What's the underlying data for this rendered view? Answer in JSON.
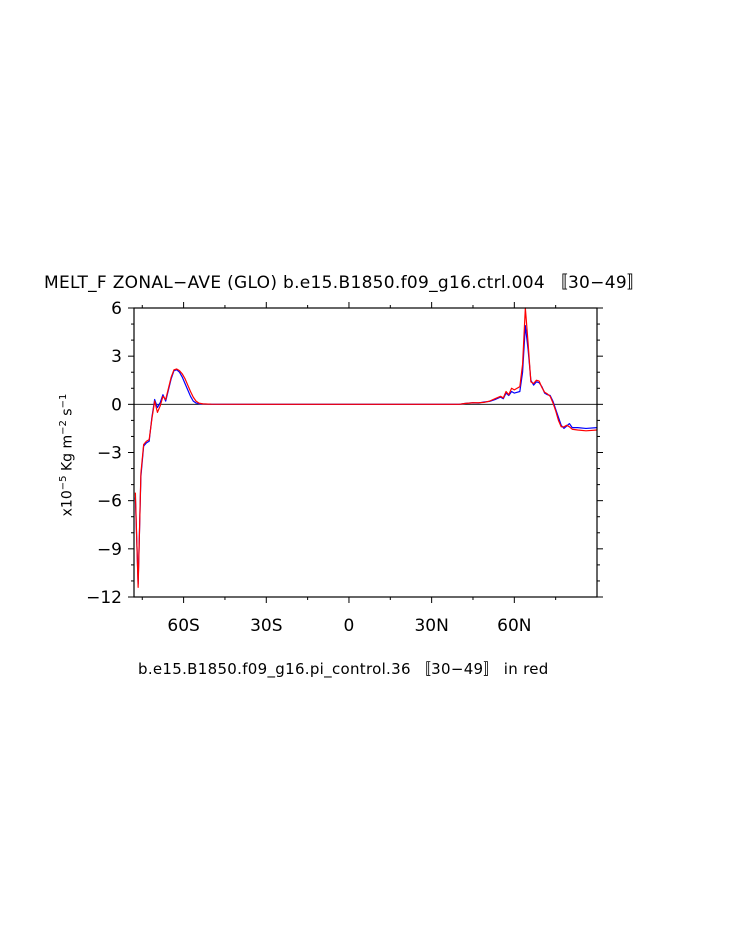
{
  "chart_data": {
    "type": "line",
    "title": "MELT_F ZONAL−AVE (GLO) b.e15.B1850.f09_g16.ctrl.004 〚30−49〛",
    "caption": "b.e15.B1850.f09_g16.pi_control.36 〚30−49〛 in red",
    "ylabel": {
      "prefix": "x10",
      "exp1": "−5",
      "unit1": " Kg m",
      "exp2": "−2",
      "unit2": " s",
      "exp3": "−1"
    },
    "xlim": [
      -78,
      90
    ],
    "ylim": [
      -12,
      6
    ],
    "x_ticks": [
      {
        "value": -60,
        "label": "60S"
      },
      {
        "value": -30,
        "label": "30S"
      },
      {
        "value": 0,
        "label": "0"
      },
      {
        "value": 30,
        "label": "30N"
      },
      {
        "value": 60,
        "label": "60N"
      }
    ],
    "y_ticks": [
      {
        "value": 6,
        "label": "6"
      },
      {
        "value": 3,
        "label": "3"
      },
      {
        "value": 0,
        "label": "0"
      },
      {
        "value": -3,
        "label": "−3"
      },
      {
        "value": -6,
        "label": "−6"
      },
      {
        "value": -9,
        "label": "−9"
      },
      {
        "value": -12,
        "label": "−12"
      }
    ],
    "zero_line": true,
    "series": [
      {
        "color": "#0000ff",
        "points": [
          [
            -77.5,
            -5.8
          ],
          [
            -76.5,
            -11.2
          ],
          [
            -75.5,
            -4.5
          ],
          [
            -74.5,
            -2.6
          ],
          [
            -73.5,
            -2.4
          ],
          [
            -72.5,
            -2.3
          ],
          [
            -71.5,
            -0.8
          ],
          [
            -70.5,
            0.3
          ],
          [
            -69.5,
            -0.2
          ],
          [
            -68.5,
            0.1
          ],
          [
            -67.5,
            0.6
          ],
          [
            -66.5,
            0.2
          ],
          [
            -65.5,
            0.9
          ],
          [
            -64.5,
            1.6
          ],
          [
            -63.5,
            2.1
          ],
          [
            -62.5,
            2.15
          ],
          [
            -61.5,
            2.0
          ],
          [
            -60.5,
            1.7
          ],
          [
            -59.5,
            1.3
          ],
          [
            -58.5,
            0.9
          ],
          [
            -57.5,
            0.5
          ],
          [
            -56.5,
            0.2
          ],
          [
            -55.5,
            0.08
          ],
          [
            -54,
            0.03
          ],
          [
            -50,
            0.01
          ],
          [
            -30,
            0
          ],
          [
            0,
            0
          ],
          [
            40,
            0
          ],
          [
            42,
            0.05
          ],
          [
            45,
            0.1
          ],
          [
            47,
            0.08
          ],
          [
            49,
            0.15
          ],
          [
            51,
            0.18
          ],
          [
            53,
            0.3
          ],
          [
            55,
            0.45
          ],
          [
            56,
            0.35
          ],
          [
            57,
            0.7
          ],
          [
            58,
            0.55
          ],
          [
            59,
            0.8
          ],
          [
            60,
            0.7
          ],
          [
            61,
            0.75
          ],
          [
            62,
            0.8
          ],
          [
            63,
            2.0
          ],
          [
            64,
            4.9
          ],
          [
            65,
            3.4
          ],
          [
            66,
            1.5
          ],
          [
            67,
            1.2
          ],
          [
            68,
            1.4
          ],
          [
            69,
            1.35
          ],
          [
            70,
            1.1
          ],
          [
            71,
            0.7
          ],
          [
            72,
            0.6
          ],
          [
            73,
            0.55
          ],
          [
            74,
            0.2
          ],
          [
            75,
            -0.3
          ],
          [
            76,
            -0.8
          ],
          [
            77,
            -1.3
          ],
          [
            78,
            -1.5
          ],
          [
            79,
            -1.35
          ],
          [
            80,
            -1.2
          ],
          [
            81,
            -1.45
          ],
          [
            83,
            -1.45
          ],
          [
            86,
            -1.5
          ],
          [
            90,
            -1.45
          ]
        ]
      },
      {
        "color": "#ff0000",
        "points": [
          [
            -77.5,
            -5.5
          ],
          [
            -76.5,
            -11.4
          ],
          [
            -75.5,
            -4.3
          ],
          [
            -74.5,
            -2.5
          ],
          [
            -73.5,
            -2.3
          ],
          [
            -72.5,
            -2.2
          ],
          [
            -71.5,
            -0.9
          ],
          [
            -70.5,
            0.2
          ],
          [
            -69.5,
            -0.5
          ],
          [
            -68.5,
            -0.1
          ],
          [
            -67.5,
            0.5
          ],
          [
            -66.5,
            0.3
          ],
          [
            -65.5,
            1.0
          ],
          [
            -64.5,
            1.7
          ],
          [
            -63.5,
            2.15
          ],
          [
            -62.5,
            2.2
          ],
          [
            -61.5,
            2.1
          ],
          [
            -60.5,
            1.9
          ],
          [
            -59.5,
            1.6
          ],
          [
            -58.5,
            1.2
          ],
          [
            -57.5,
            0.8
          ],
          [
            -56.5,
            0.45
          ],
          [
            -55.5,
            0.2
          ],
          [
            -54.5,
            0.08
          ],
          [
            -53,
            0.03
          ],
          [
            -50,
            0.01
          ],
          [
            -30,
            0
          ],
          [
            0,
            0
          ],
          [
            40,
            0
          ],
          [
            42,
            0.05
          ],
          [
            45,
            0.1
          ],
          [
            47,
            0.1
          ],
          [
            49,
            0.12
          ],
          [
            51,
            0.2
          ],
          [
            53,
            0.35
          ],
          [
            55,
            0.5
          ],
          [
            56,
            0.4
          ],
          [
            57,
            0.8
          ],
          [
            58,
            0.6
          ],
          [
            59,
            1.0
          ],
          [
            60,
            0.9
          ],
          [
            61,
            1.0
          ],
          [
            62,
            1.1
          ],
          [
            63,
            2.5
          ],
          [
            64,
            6.0
          ],
          [
            65,
            3.8
          ],
          [
            66,
            1.4
          ],
          [
            67,
            1.3
          ],
          [
            68,
            1.5
          ],
          [
            69,
            1.45
          ],
          [
            70,
            1.05
          ],
          [
            71,
            0.75
          ],
          [
            72,
            0.65
          ],
          [
            73,
            0.5
          ],
          [
            74,
            0.1
          ],
          [
            75,
            -0.4
          ],
          [
            76,
            -1.0
          ],
          [
            77,
            -1.4
          ],
          [
            78,
            -1.4
          ],
          [
            79,
            -1.3
          ],
          [
            80,
            -1.4
          ],
          [
            81,
            -1.55
          ],
          [
            83,
            -1.6
          ],
          [
            86,
            -1.65
          ],
          [
            90,
            -1.6
          ]
        ]
      }
    ]
  }
}
